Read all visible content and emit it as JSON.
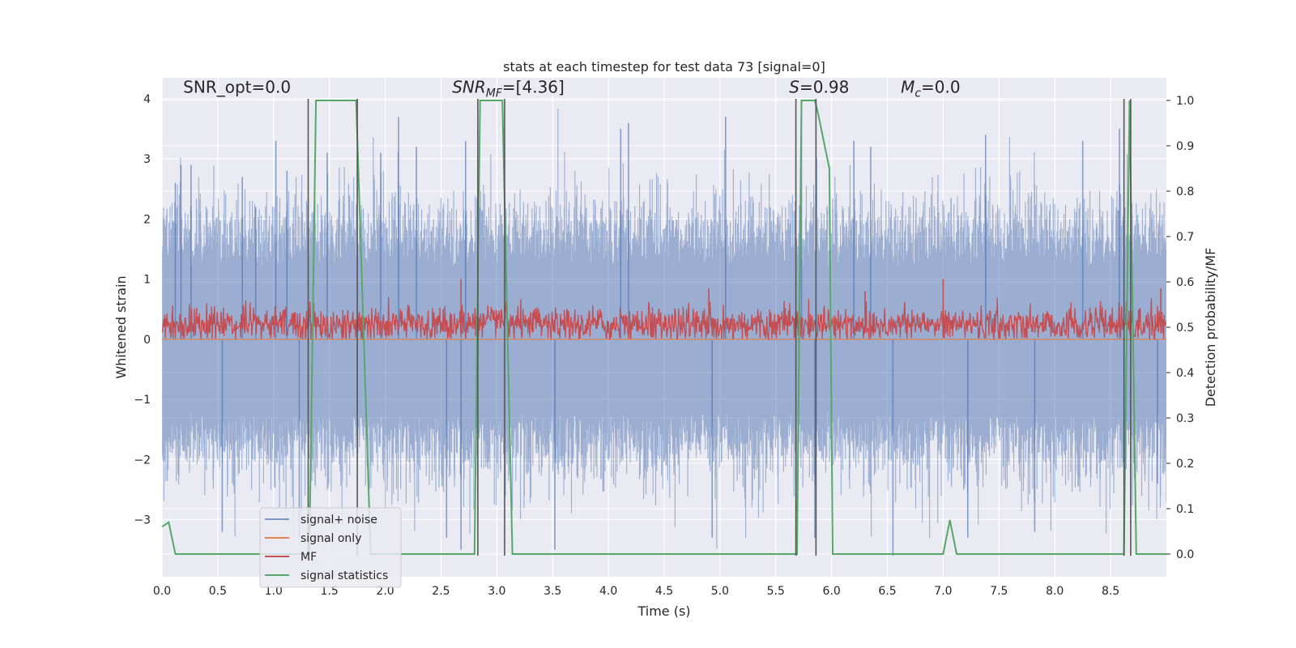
{
  "chart_data": {
    "type": "line",
    "title": "stats at each timestep for test data 73 [signal=0]",
    "xlabel": "Time (s)",
    "ylabel": "Whitened strain",
    "y2label": "Detection probability/MF",
    "xlim": [
      0.0,
      9.0
    ],
    "ylim": [
      -3.95,
      4.35
    ],
    "y2lim": [
      -0.05,
      1.05
    ],
    "xticks": [
      0.0,
      0.5,
      1.0,
      1.5,
      2.0,
      2.5,
      3.0,
      3.5,
      4.0,
      4.5,
      5.0,
      5.5,
      6.0,
      6.5,
      7.0,
      7.5,
      8.0,
      8.5
    ],
    "xtick_labels": [
      "0.0",
      "0.5",
      "1.0",
      "1.5",
      "2.0",
      "2.5",
      "3.0",
      "3.5",
      "4.0",
      "4.5",
      "5.0",
      "5.5",
      "6.0",
      "6.5",
      "7.0",
      "7.5",
      "8.0",
      "8.5"
    ],
    "yticks": [
      -3,
      -2,
      -1,
      0,
      1,
      2,
      3,
      4
    ],
    "ytick_labels": [
      "−3",
      "−2",
      "−1",
      "0",
      "1",
      "2",
      "3",
      "4"
    ],
    "y2ticks": [
      0.0,
      0.1,
      0.2,
      0.3,
      0.4,
      0.5,
      0.6,
      0.7,
      0.8,
      0.9,
      1.0
    ],
    "y2tick_labels": [
      "0.0",
      "0.1",
      "0.2",
      "0.3",
      "0.4",
      "0.5",
      "0.6",
      "0.7",
      "0.8",
      "0.9",
      "1.0"
    ],
    "grid": true,
    "legend_position": "lower-left",
    "annotations": [
      {
        "id": "snr_opt",
        "text": "SNR_opt=0.0",
        "x": 0.19,
        "y": 4.1
      },
      {
        "id": "snr_mf",
        "text": "SNRMF=[4.36]",
        "math_base": "SNR",
        "math_sub": "MF",
        "math_tail": "=[4.36]",
        "x": 2.6,
        "y": 4.1
      },
      {
        "id": "s",
        "text": "S=0.98",
        "math_base": "S",
        "math_tail": "=0.98",
        "x": 5.62,
        "y": 4.1
      },
      {
        "id": "mc",
        "text": "Mc=0.0",
        "math_base": "M",
        "math_sub": "c",
        "math_tail": "=0.0",
        "x": 6.62,
        "y": 4.1
      }
    ],
    "series": [
      {
        "name": "signal+ noise",
        "color": "#4C72B0",
        "opacity": 0.5,
        "axis": "left",
        "style": "dense-noise",
        "x_range": [
          0.0,
          9.0
        ],
        "envelope_sigma": 1.0,
        "spike_peaks": [
          {
            "x": 0.12,
            "y": 2.6
          },
          {
            "x": 0.17,
            "y": 2.9
          },
          {
            "x": 0.26,
            "y": 2.9
          },
          {
            "x": 0.72,
            "y": 2.7
          },
          {
            "x": 0.84,
            "y": 2.2
          },
          {
            "x": 1.02,
            "y": 3.3
          },
          {
            "x": 1.12,
            "y": 2.8
          },
          {
            "x": 1.48,
            "y": 3.1
          },
          {
            "x": 1.96,
            "y": 3.1
          },
          {
            "x": 2.12,
            "y": 3.7
          },
          {
            "x": 2.28,
            "y": 3.2
          },
          {
            "x": 2.72,
            "y": 3.3
          },
          {
            "x": 4.11,
            "y": 3.5
          },
          {
            "x": 4.18,
            "y": 3.6
          },
          {
            "x": 5.05,
            "y": 3.7
          },
          {
            "x": 5.73,
            "y": 3.8
          },
          {
            "x": 6.2,
            "y": 3.3
          },
          {
            "x": 6.35,
            "y": 3.2
          },
          {
            "x": 7.38,
            "y": 3.4
          },
          {
            "x": 8.25,
            "y": 3.3
          },
          {
            "x": 8.58,
            "y": 3.5
          },
          {
            "x": 0.54,
            "y": -3.2
          },
          {
            "x": 1.23,
            "y": -3.3
          },
          {
            "x": 2.55,
            "y": -3.3
          },
          {
            "x": 2.68,
            "y": -3.5
          },
          {
            "x": 3.52,
            "y": -3.5
          },
          {
            "x": 4.93,
            "y": -3.3
          },
          {
            "x": 5.85,
            "y": -3.3
          },
          {
            "x": 6.55,
            "y": -3.6
          },
          {
            "x": 7.22,
            "y": -3.3
          },
          {
            "x": 7.82,
            "y": -3.2
          },
          {
            "x": 8.92,
            "y": -2.4
          }
        ]
      },
      {
        "name": "signal only",
        "color": "#DD8452",
        "axis": "left",
        "style": "flat",
        "x": [
          0.0,
          9.0
        ],
        "y": [
          0.0,
          0.0
        ]
      },
      {
        "name": "MF",
        "color": "#C44E52",
        "axis": "left",
        "style": "dense-noise",
        "x_range": [
          0.0,
          9.0
        ],
        "baseline": 0.25,
        "amplitude": 0.33,
        "min": 0.0,
        "spike_peaks": [
          {
            "x": 2.68,
            "y": 1.0
          },
          {
            "x": 7.0,
            "y": 1.0
          },
          {
            "x": 4.9,
            "y": 0.85
          },
          {
            "x": 6.3,
            "y": 0.8
          },
          {
            "x": 8.95,
            "y": 0.85
          }
        ]
      },
      {
        "name": "signal statistics",
        "color": "#55A868",
        "axis": "right",
        "style": "polyline",
        "x": [
          0.0,
          0.06,
          0.12,
          1.32,
          1.38,
          1.74,
          1.87,
          2.8,
          2.85,
          3.05,
          3.14,
          5.69,
          5.73,
          5.85,
          5.88,
          5.98,
          6.01,
          7.0,
          7.06,
          7.12,
          8.62,
          8.67,
          8.73,
          9.0
        ],
        "y": [
          0.06,
          0.07,
          0.0,
          0.0,
          1.0,
          1.0,
          0.0,
          0.0,
          1.0,
          1.0,
          0.0,
          0.0,
          1.0,
          1.0,
          0.97,
          0.85,
          0.0,
          0.0,
          0.075,
          0.0,
          0.0,
          1.0,
          0.0,
          0.0
        ]
      }
    ],
    "vertical_lines": {
      "color": "#555555",
      "x": [
        1.31,
        1.75,
        2.83,
        3.07,
        5.68,
        5.86,
        8.62,
        8.68
      ],
      "y_range": [
        -3.6,
        4.0
      ]
    }
  }
}
